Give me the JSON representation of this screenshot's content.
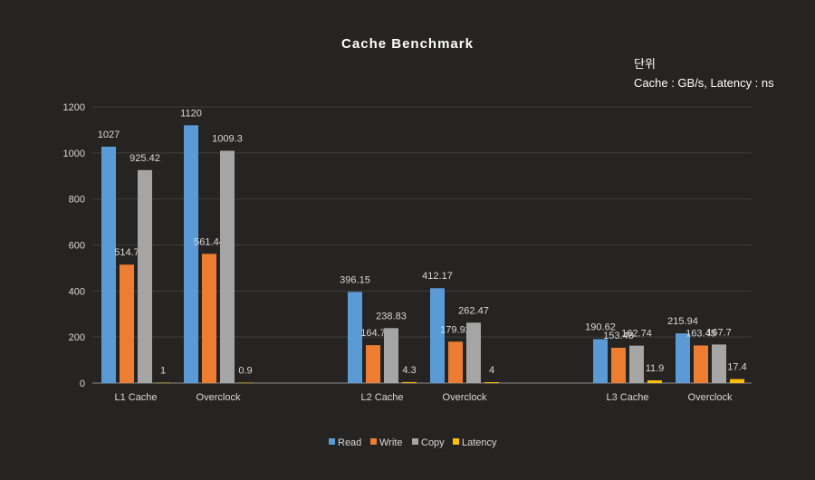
{
  "chart_data": {
    "type": "bar",
    "title": "Cache Benchmark",
    "unit_note": [
      "단위",
      "Cache : GB/s, Latency : ns"
    ],
    "categories": [
      "L1 Cache",
      "Overclock",
      "L2 Cache",
      "Overclock",
      "L3 Cache",
      "Overclock"
    ],
    "series": [
      {
        "name": "Read",
        "color": "#5b9bd5",
        "values": [
          1027,
          1120,
          396.15,
          412.17,
          190.62,
          215.94
        ]
      },
      {
        "name": "Write",
        "color": "#ed7d31",
        "values": [
          514.7,
          561.44,
          164.7,
          179.92,
          153.48,
          163.45
        ]
      },
      {
        "name": "Copy",
        "color": "#a5a5a5",
        "values": [
          925.42,
          1009.3,
          238.83,
          262.47,
          162.74,
          167.7
        ]
      },
      {
        "name": "Latency",
        "color": "#ffc000",
        "values": [
          1,
          0.9,
          4.3,
          4,
          11.9,
          17.4
        ]
      }
    ],
    "value_labels": [
      [
        "1027",
        "1120",
        "396.15",
        "412.17",
        "190.62",
        "215.94"
      ],
      [
        "514.7",
        "561.44",
        "164.7",
        "179.92",
        "153.48",
        "163.45"
      ],
      [
        "925.42",
        "1009.3",
        "238.83",
        "262.47",
        "162.74",
        "167.7"
      ],
      [
        "1",
        "0.9",
        "4.3",
        "4",
        "11.9",
        "17.4"
      ]
    ],
    "ylim": [
      0,
      1200
    ],
    "yticks": [
      "0",
      "200",
      "400",
      "600",
      "800",
      "1000",
      "1200"
    ],
    "grid": true,
    "legend": "bottom"
  }
}
